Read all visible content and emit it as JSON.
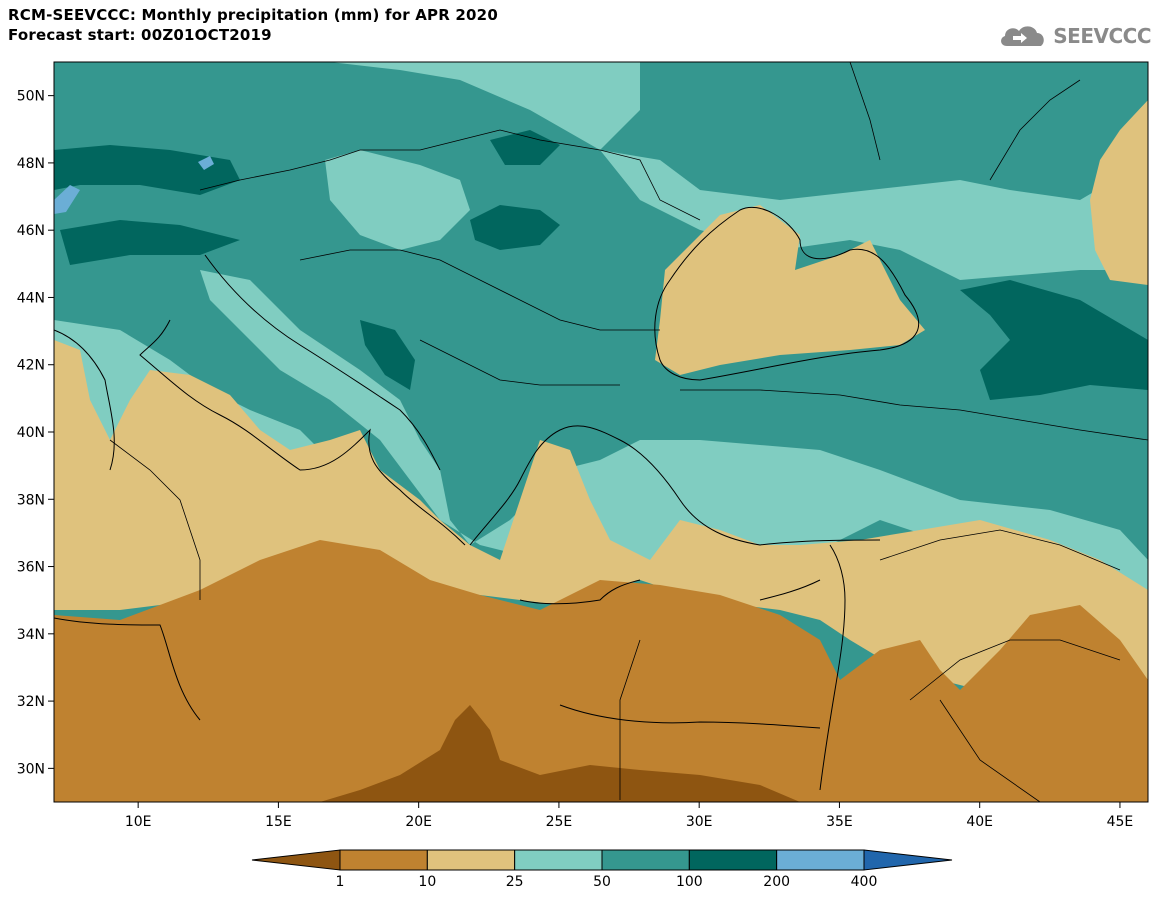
{
  "header": {
    "title_line1": "RCM-SEEVCCC: Monthly precipitation (mm) for APR 2020",
    "title_line2": "Forecast start: 00Z01OCT2019",
    "logo_text": "SEEVCCC",
    "logo_icon": "cloud-icon"
  },
  "map": {
    "lon_range": [
      7,
      46
    ],
    "lat_range": [
      29,
      51
    ],
    "y_ticks": [
      "50N",
      "48N",
      "46N",
      "44N",
      "42N",
      "40N",
      "38N",
      "36N",
      "34N",
      "32N",
      "30N"
    ],
    "x_ticks": [
      "10E",
      "15E",
      "20E",
      "25E",
      "30E",
      "35E",
      "40E",
      "45E"
    ]
  },
  "legend": {
    "levels": [
      "1",
      "10",
      "25",
      "50",
      "100",
      "200",
      "400"
    ],
    "colors": [
      "#8e5511",
      "#bf8230",
      "#dfc27d",
      "#80cdc1",
      "#35978f",
      "#01665e",
      "#6baed6",
      "#2166ac"
    ]
  }
}
